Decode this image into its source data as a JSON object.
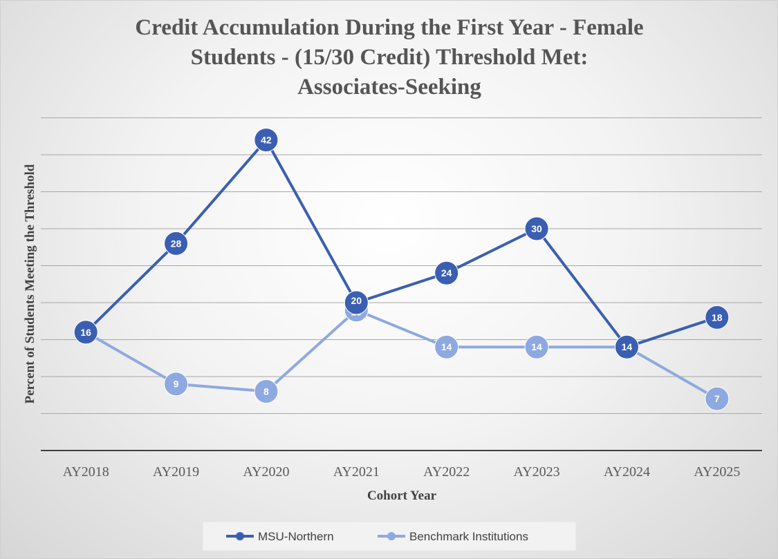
{
  "chart_data": {
    "type": "line",
    "title": [
      "Credit Accumulation During the First Year - Female",
      "Students - (15/30 Credit) Threshold Met:",
      "Associates-Seeking"
    ],
    "xlabel": "Cohort Year",
    "ylabel": "Percent of Students Meeting the Threshold",
    "categories": [
      "AY2018",
      "AY2019",
      "AY2020",
      "AY2021",
      "AY2022",
      "AY2023",
      "AY2024",
      "AY2025"
    ],
    "ylim": [
      0,
      45
    ],
    "grid": true,
    "legend_position": "bottom",
    "series": [
      {
        "name": "MSU-Northern",
        "values": [
          16,
          28,
          42,
          20,
          24,
          30,
          14,
          18
        ],
        "color": "#3a5fb2"
      },
      {
        "name": "Benchmark Institutions",
        "values": [
          16,
          9,
          8,
          19,
          14,
          14,
          14,
          7
        ],
        "color": "#8ea9e0"
      }
    ]
  }
}
